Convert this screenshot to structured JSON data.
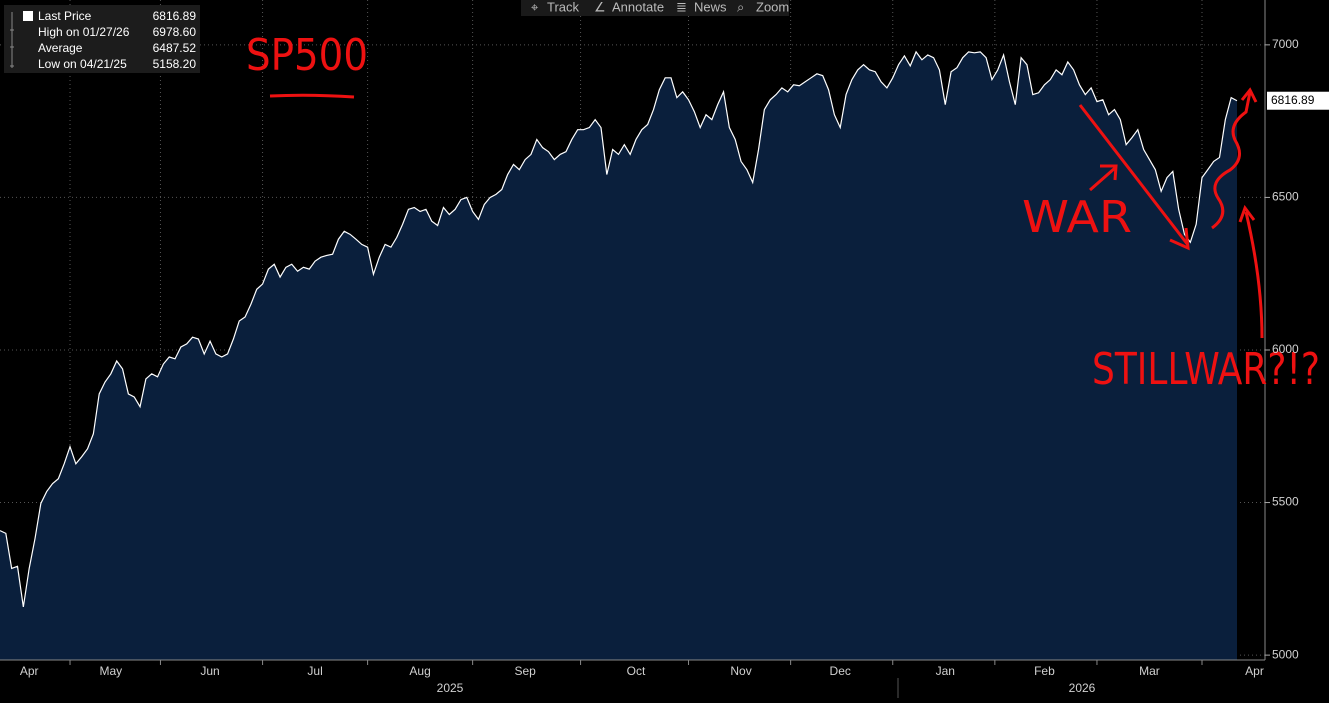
{
  "chart_data": {
    "type": "area",
    "toolbar": [
      "Track",
      "Annotate",
      "News",
      "Zoom"
    ],
    "stats": [
      {
        "label": "Last Price",
        "value": "6816.89"
      },
      {
        "label": "High on 01/27/26",
        "value": "6978.60"
      },
      {
        "label": "Average",
        "value": "6487.52"
      },
      {
        "label": "Low on 04/21/25",
        "value": "5158.20"
      }
    ],
    "annotations": [
      "SP500",
      "WAR",
      "STILLWAR?!?"
    ],
    "years": [
      "2025",
      "2026"
    ],
    "categories": [
      null,
      null,
      null,
      null,
      null,
      "Apr",
      null,
      null,
      null,
      null,
      null,
      null,
      null,
      null,
      null,
      null,
      null,
      null,
      null,
      "May",
      null,
      null,
      null,
      null,
      null,
      null,
      null,
      null,
      null,
      null,
      null,
      null,
      null,
      null,
      null,
      null,
      "Jun",
      null,
      null,
      null,
      null,
      null,
      null,
      null,
      null,
      null,
      null,
      null,
      null,
      null,
      null,
      null,
      null,
      null,
      "Jul",
      null,
      null,
      null,
      null,
      null,
      null,
      null,
      null,
      null,
      null,
      null,
      null,
      null,
      null,
      null,
      null,
      null,
      "Aug",
      null,
      null,
      null,
      null,
      null,
      null,
      null,
      null,
      null,
      null,
      null,
      null,
      null,
      null,
      null,
      null,
      null,
      "Sep",
      null,
      null,
      null,
      null,
      null,
      null,
      null,
      null,
      null,
      null,
      null,
      null,
      null,
      null,
      null,
      null,
      null,
      null,
      "Oct",
      null,
      null,
      null,
      null,
      null,
      null,
      null,
      null,
      null,
      null,
      null,
      null,
      null,
      null,
      null,
      null,
      null,
      "Nov",
      null,
      null,
      null,
      null,
      null,
      null,
      null,
      null,
      null,
      null,
      null,
      null,
      null,
      null,
      null,
      null,
      "Dec",
      null,
      null,
      null,
      null,
      null,
      null,
      null,
      null,
      null,
      null,
      null,
      null,
      null,
      null,
      null,
      null,
      null,
      "Jan",
      null,
      null,
      null,
      null,
      null,
      null,
      null,
      null,
      null,
      null,
      null,
      null,
      null,
      null,
      null,
      null,
      "Feb",
      null,
      null,
      null,
      null,
      null,
      null,
      null,
      null,
      null,
      null,
      null,
      null,
      null,
      null,
      null,
      null,
      null,
      "Mar",
      null,
      null,
      null,
      null,
      null,
      null,
      null,
      null,
      null,
      null,
      null,
      null,
      null,
      null,
      null,
      null,
      null,
      "Apr",
      null
    ],
    "values": [
      5408,
      5399,
      5284,
      5291,
      5158,
      5284,
      5382,
      5497,
      5536,
      5562,
      5578,
      5627,
      5683,
      5627,
      5650,
      5676,
      5725,
      5856,
      5895,
      5922,
      5964,
      5938,
      5856,
      5846,
      5814,
      5905,
      5922,
      5912,
      5954,
      5977,
      5971,
      6010,
      6020,
      6042,
      6036,
      5987,
      6029,
      5987,
      5977,
      5987,
      6036,
      6095,
      6108,
      6150,
      6199,
      6216,
      6265,
      6281,
      6239,
      6271,
      6281,
      6258,
      6271,
      6265,
      6291,
      6304,
      6310,
      6314,
      6363,
      6389,
      6379,
      6363,
      6346,
      6337,
      6248,
      6304,
      6346,
      6337,
      6369,
      6412,
      6461,
      6467,
      6454,
      6461,
      6422,
      6408,
      6467,
      6444,
      6461,
      6493,
      6500,
      6454,
      6428,
      6477,
      6500,
      6510,
      6526,
      6575,
      6608,
      6591,
      6624,
      6641,
      6690,
      6663,
      6650,
      6624,
      6641,
      6650,
      6690,
      6722,
      6722,
      6729,
      6755,
      6729,
      6575,
      6657,
      6641,
      6673,
      6641,
      6690,
      6722,
      6739,
      6788,
      6853,
      6892,
      6892,
      6827,
      6846,
      6820,
      6781,
      6729,
      6771,
      6755,
      6804,
      6846,
      6729,
      6690,
      6618,
      6591,
      6549,
      6657,
      6788,
      6820,
      6837,
      6859,
      6846,
      6869,
      6866,
      6879,
      6892,
      6905,
      6899,
      6853,
      6771,
      6729,
      6837,
      6886,
      6918,
      6935,
      6918,
      6912,
      6879,
      6859,
      6892,
      6935,
      6964,
      6931,
      6977,
      6951,
      6967,
      6958,
      6918,
      6804,
      6912,
      6925,
      6958,
      6977,
      6974,
      6977,
      6958,
      6886,
      6918,
      6967,
      6879,
      6804,
      6958,
      6935,
      6837,
      6843,
      6869,
      6886,
      6918,
      6902,
      6944,
      6918,
      6869,
      6837,
      6859,
      6814,
      6820,
      6771,
      6788,
      6755,
      6673,
      6696,
      6722,
      6657,
      6624,
      6591,
      6520,
      6565,
      6585,
      6461,
      6379,
      6353,
      6412,
      6565,
      6591,
      6618,
      6631,
      6755,
      6827,
      6816.89,
      null,
      null,
      null,
      null
    ],
    "line_color": "#ffffff",
    "fill_color": "#0a1f3c",
    "ylim": [
      4984,
      7147
    ],
    "yticks": [
      5000,
      5500,
      6000,
      6500,
      7000
    ],
    "grid": true
  }
}
